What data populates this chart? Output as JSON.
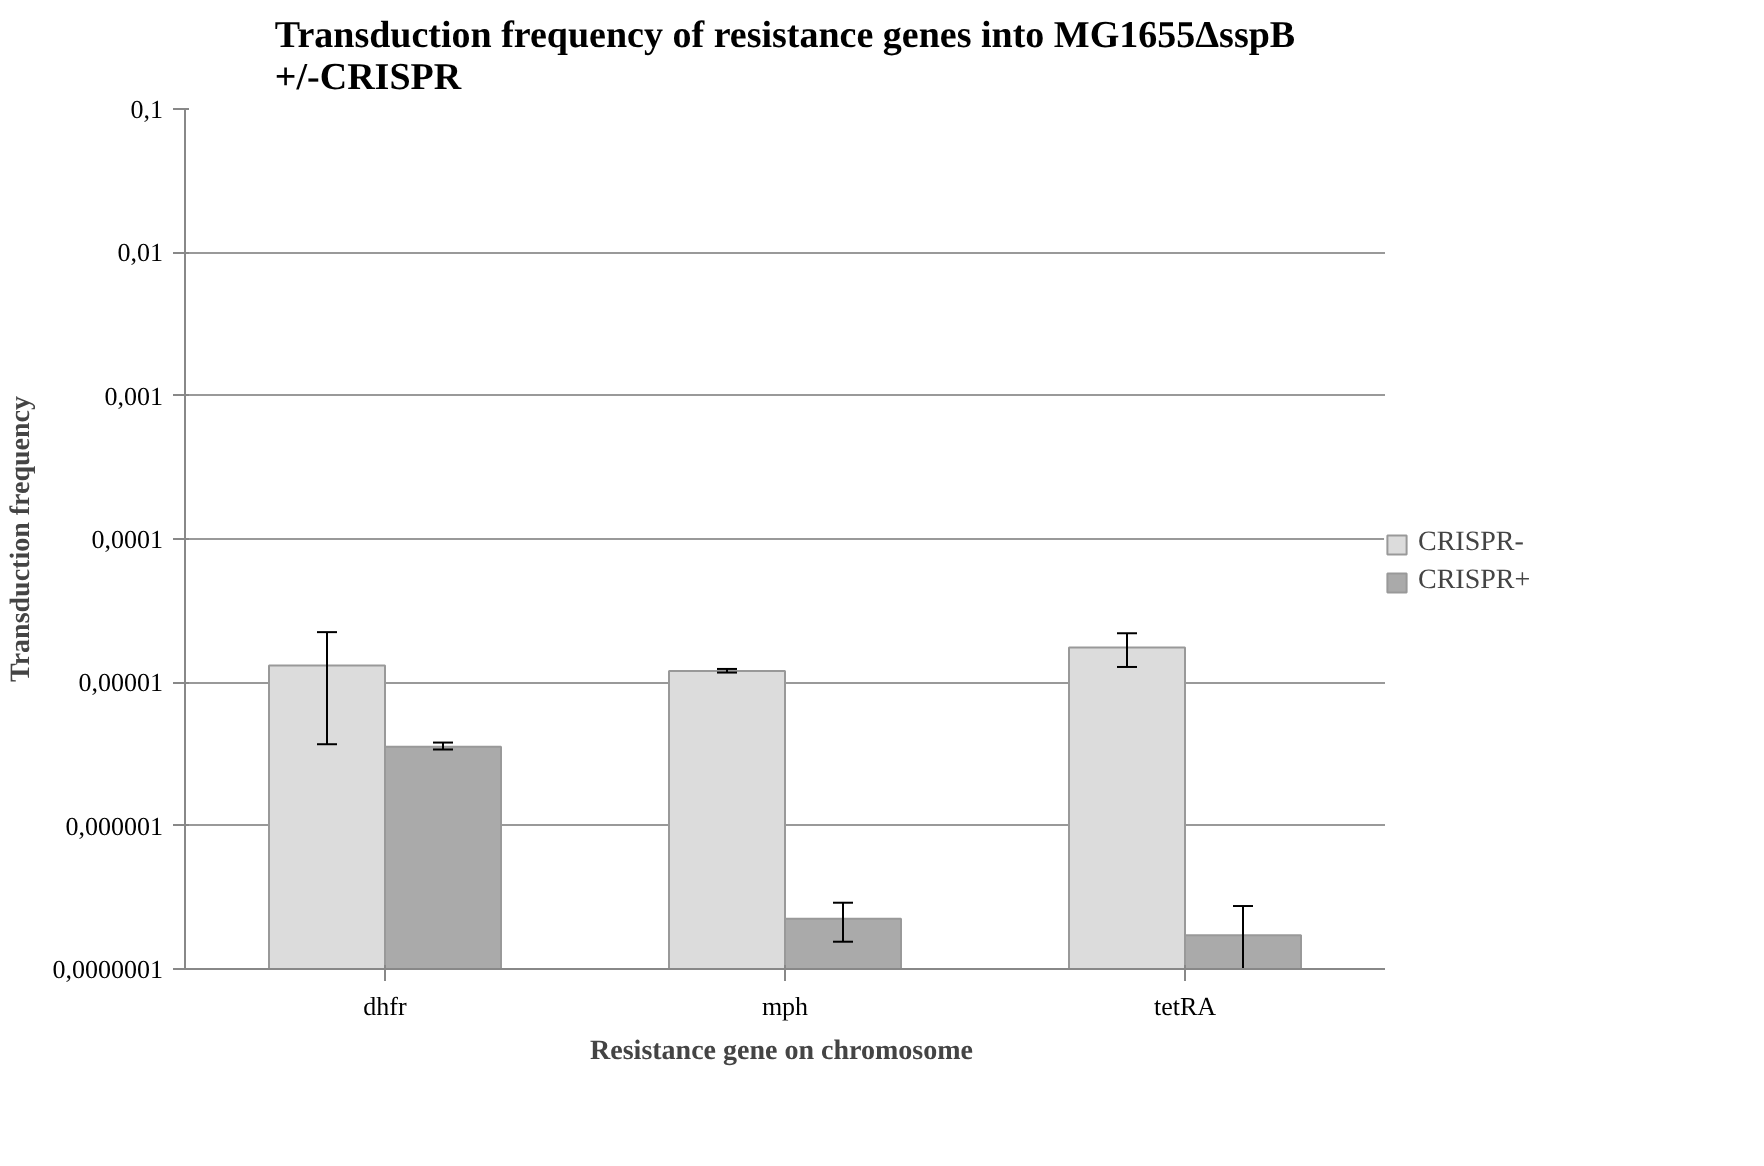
{
  "chart_data": {
    "type": "bar",
    "title": "Transduction frequency of resistance genes into MG1655ΔsspB\n+/-CRISPR",
    "xlabel": "Resistance gene  on chromosome",
    "ylabel": "Transduction frequency",
    "categories": [
      "dhfr",
      "mph",
      "tetRA"
    ],
    "series": [
      {
        "name": "CRISPR-",
        "color": "#dcdcdc",
        "values": [
          1.31e-05,
          1.2e-05,
          1.75e-05
        ],
        "errors": [
          [
            3.7e-06,
            2.24e-05
          ],
          [
            1.17e-05,
            1.24e-05
          ],
          [
            1.28e-05,
            2.2e-05
          ]
        ]
      },
      {
        "name": "CRISPR+",
        "color": "#aaaaaa",
        "values": [
          3.55e-06,
          2.24e-07,
          1.72e-07
        ],
        "errors": [
          [
            3.4e-06,
            3.8e-06
          ],
          [
            1.55e-07,
            2.9e-07
          ],
          [
            1e-07,
            2.75e-07
          ]
        ]
      }
    ],
    "log": "y",
    "ylim": [
      1e-07,
      0.1
    ],
    "yticks": [
      {
        "value": 1e-07,
        "label": "0,0000001"
      },
      {
        "value": 1e-06,
        "label": "0,000001"
      },
      {
        "value": 1e-05,
        "label": "0,00001"
      },
      {
        "value": 0.0001,
        "label": "0,0001"
      },
      {
        "value": 0.001,
        "label": "0,001"
      },
      {
        "value": 0.01,
        "label": "0,01"
      },
      {
        "value": 0.1,
        "label": "0,1"
      }
    ],
    "grid": "y",
    "legend": "right"
  }
}
